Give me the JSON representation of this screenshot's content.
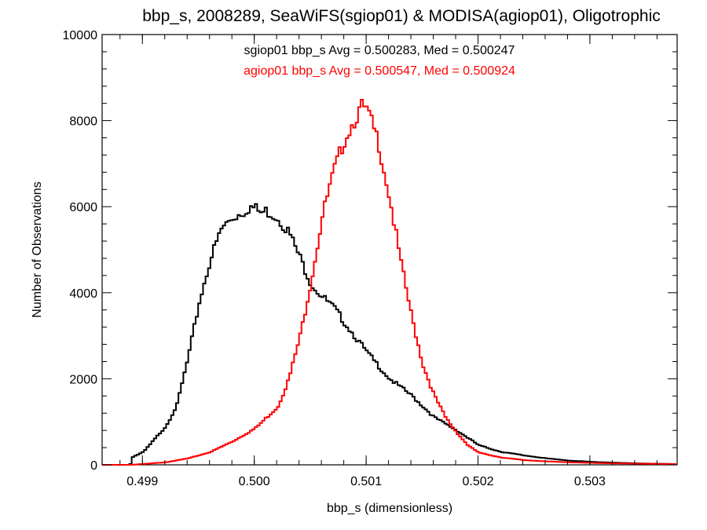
{
  "chart_data": {
    "type": "line",
    "subtype": "step-histogram",
    "title": "bbp_s, 2008289, SeaWiFS(sgiop01) & MODISA(agiop01), Oligotrophic",
    "xlabel": "bbp_s (dimensionless)",
    "ylabel": "Number of Observations",
    "xlim": [
      0.49864,
      0.50378
    ],
    "ylim": [
      0,
      10000
    ],
    "x_ticks": [
      0.499,
      0.5,
      0.501,
      0.502,
      0.503
    ],
    "x_tick_labels": [
      "0.499",
      "0.500",
      "0.501",
      "0.502",
      "0.503"
    ],
    "y_ticks": [
      0,
      2000,
      4000,
      6000,
      8000,
      10000
    ],
    "y_tick_labels": [
      "0",
      "2000",
      "4000",
      "6000",
      "8000",
      "10000"
    ],
    "grid": false,
    "annotations": [
      {
        "text": "sgiop01 bbp_s Avg = 0.500283, Med = 0.500247",
        "color": "#000000"
      },
      {
        "text": "agiop01 bbp_s Avg = 0.500547, Med = 0.500924",
        "color": "#ff0000"
      }
    ],
    "series": [
      {
        "color": "#000000",
        "x": [
          0.49888,
          0.4989,
          0.499,
          0.4991,
          0.4992,
          0.4993,
          0.4994,
          0.4995,
          0.4996,
          0.4997,
          0.4998,
          0.4999,
          0.49995,
          0.5,
          0.50005,
          0.5001,
          0.5002,
          0.5003,
          0.5004,
          0.5005,
          0.5006,
          0.5007,
          0.5008,
          0.5009,
          0.501,
          0.5011,
          0.5012,
          0.5013,
          0.5014,
          0.5015,
          0.5016,
          0.5018,
          0.502,
          0.5022,
          0.5024,
          0.5026,
          0.5028,
          0.503,
          0.5032,
          0.5034,
          0.5036,
          0.50378
        ],
        "values": [
          0,
          180,
          300,
          600,
          900,
          1400,
          2500,
          3800,
          4800,
          5500,
          5750,
          5900,
          6000,
          5950,
          5850,
          5900,
          5750,
          5400,
          4800,
          4200,
          3900,
          3650,
          3300,
          2950,
          2600,
          2300,
          2000,
          1800,
          1600,
          1350,
          1100,
          800,
          450,
          300,
          220,
          150,
          100,
          70,
          50,
          35,
          25,
          15
        ]
      },
      {
        "color": "#ff0000",
        "x": [
          0.49888,
          0.499,
          0.4992,
          0.4994,
          0.4996,
          0.4998,
          0.5,
          0.5002,
          0.5003,
          0.5004,
          0.5005,
          0.5006,
          0.5007,
          0.5008,
          0.5009,
          0.50095,
          0.501,
          0.5011,
          0.5012,
          0.5013,
          0.5014,
          0.5015,
          0.5016,
          0.5017,
          0.5018,
          0.5019,
          0.502,
          0.5022,
          0.5024,
          0.5026,
          0.5028,
          0.503,
          0.5032,
          0.5034,
          0.5036,
          0.50378
        ],
        "values": [
          0,
          20,
          60,
          150,
          300,
          550,
          850,
          1350,
          2000,
          3000,
          4300,
          5800,
          6800,
          7600,
          8100,
          8300,
          8200,
          7500,
          6200,
          4700,
          3400,
          2300,
          1600,
          1100,
          750,
          450,
          280,
          170,
          110,
          80,
          60,
          45,
          35,
          28,
          22,
          18
        ]
      }
    ]
  }
}
